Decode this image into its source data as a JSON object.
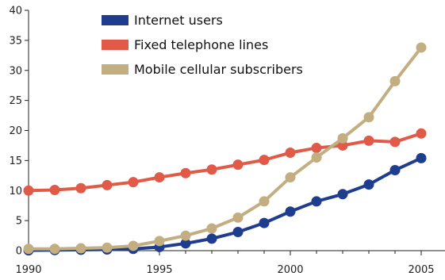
{
  "chart_data": {
    "type": "line",
    "title": "",
    "xlabel": "",
    "ylabel": "",
    "x": [
      1990,
      1991,
      1992,
      1993,
      1994,
      1995,
      1996,
      1997,
      1998,
      1999,
      2000,
      2001,
      2002,
      2003,
      2004,
      2005
    ],
    "xlim": [
      1990,
      2006
    ],
    "ylim": [
      0,
      40
    ],
    "xticks": [
      "1990",
      "1995",
      "2000",
      "2005"
    ],
    "yticks": [
      "0",
      "5",
      "10",
      "15",
      "20",
      "25",
      "30",
      "35",
      "40"
    ],
    "grid": false,
    "legend_position": "top-center",
    "series": [
      {
        "name": "Internet users",
        "color": "#1f3d8f",
        "values": [
          0.05,
          0.1,
          0.15,
          0.2,
          0.3,
          0.6,
          1.2,
          2.0,
          3.1,
          4.6,
          6.5,
          8.2,
          9.4,
          11.0,
          13.4,
          15.4
        ]
      },
      {
        "name": "Fixed telephone lines",
        "color": "#e05a47",
        "values": [
          10.0,
          10.1,
          10.4,
          10.9,
          11.4,
          12.2,
          12.9,
          13.5,
          14.3,
          15.1,
          16.3,
          17.1,
          17.5,
          18.3,
          18.1,
          19.5
        ]
      },
      {
        "name": "Mobile cellular subscribers",
        "color": "#c2ae80",
        "values": [
          0.3,
          0.3,
          0.4,
          0.5,
          0.8,
          1.6,
          2.5,
          3.7,
          5.5,
          8.2,
          12.2,
          15.5,
          18.7,
          22.2,
          28.2,
          33.8
        ]
      }
    ]
  }
}
